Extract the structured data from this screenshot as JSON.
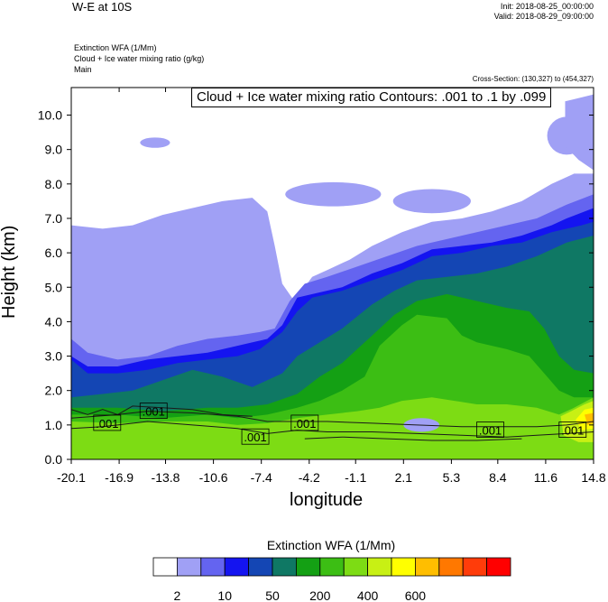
{
  "header": {
    "title": "W-E at 10S",
    "init": "Init: 2018-08-25_00:00:00",
    "valid": "Valid: 2018-08-29_09:00:00"
  },
  "fields": {
    "line1": "Extinction WFA   (1/Mm)",
    "line2": "Cloud + Ice water mixing ratio   (g/kg)",
    "line3": "Main"
  },
  "cross_section": "Cross-Section: (130,327) to (454,327)",
  "contour_info": "Cloud + Ice water mixing ratio Contours: .001 to .1 by .099",
  "colorbar": {
    "title": "Extinction WFA  (1/Mm)",
    "colors": [
      "#ffffff",
      "#a0a0f5",
      "#6464f0",
      "#1414f0",
      "#1446b4",
      "#0f7864",
      "#14a014",
      "#3cbe14",
      "#7ddc14",
      "#c8f014",
      "#ffff00",
      "#ffbe00",
      "#ff7800",
      "#ff3c0a",
      "#ff0000"
    ],
    "tick_labels": [
      "2",
      "10",
      "50",
      "200",
      "400",
      "600"
    ]
  },
  "chart_data": {
    "type": "heatmap",
    "title": "Cloud + Ice water mixing ratio Contours: .001 to .1 by .099",
    "xlabel": "longitude",
    "ylabel": "Height (km)",
    "xlim": [
      -20.1,
      14.8
    ],
    "ylim": [
      0.0,
      10.8
    ],
    "x_ticks": [
      "-20.1",
      "-16.9",
      "-13.8",
      "-10.6",
      "-7.4",
      "-4.2",
      "-1.1",
      "2.1",
      "5.3",
      "8.4",
      "11.6",
      "14.8"
    ],
    "y_ticks": [
      "0.0",
      "1.0",
      "2.0",
      "3.0",
      "4.0",
      "5.0",
      "6.0",
      "7.0",
      "8.0",
      "9.0",
      "10.0"
    ],
    "contour_labels": [
      {
        "text": ".001",
        "x": -17.7,
        "y": 1.05
      },
      {
        "text": ".001",
        "x": -14.6,
        "y": 1.4
      },
      {
        "text": ".001",
        "x": -7.8,
        "y": 0.65
      },
      {
        "text": ".001",
        "x": -4.5,
        "y": 1.05
      },
      {
        "text": ".001",
        "x": 7.9,
        "y": 0.85
      },
      {
        "text": ".001",
        "x": 13.4,
        "y": 0.85
      }
    ],
    "layers": [
      {
        "level": 1,
        "top": [
          [
            -20.1,
            6.8
          ],
          [
            -18,
            6.7
          ],
          [
            -16,
            6.8
          ],
          [
            -14,
            7.1
          ],
          [
            -12,
            7.3
          ],
          [
            -10,
            7.5
          ],
          [
            -8,
            7.6
          ],
          [
            -7,
            7.2
          ],
          [
            -6.5,
            6.2
          ],
          [
            -6,
            5.1
          ],
          [
            -5.2,
            4.6
          ],
          [
            -4,
            5.3
          ],
          [
            -3,
            5.5
          ],
          [
            -1.5,
            5.8
          ],
          [
            0,
            6.2
          ],
          [
            2,
            6.6
          ],
          [
            4,
            6.9
          ],
          [
            6,
            7.0
          ],
          [
            8,
            7.2
          ],
          [
            10,
            7.5
          ],
          [
            12,
            8.0
          ],
          [
            13.5,
            8.3
          ],
          [
            14.8,
            8.3
          ]
        ]
      },
      {
        "level": 2,
        "top": [
          [
            -20.1,
            3.5
          ],
          [
            -19,
            3.1
          ],
          [
            -17,
            2.9
          ],
          [
            -15,
            3.0
          ],
          [
            -13,
            3.3
          ],
          [
            -11,
            3.5
          ],
          [
            -9,
            3.6
          ],
          [
            -7.5,
            3.7
          ],
          [
            -6.5,
            3.8
          ],
          [
            -5.5,
            4.6
          ],
          [
            -4.5,
            5.1
          ],
          [
            -3,
            5.3
          ],
          [
            -1,
            5.6
          ],
          [
            1,
            5.9
          ],
          [
            3,
            6.2
          ],
          [
            5,
            6.4
          ],
          [
            7,
            6.6
          ],
          [
            9,
            6.8
          ],
          [
            11,
            7.0
          ],
          [
            13,
            7.4
          ],
          [
            14.8,
            7.7
          ]
        ]
      },
      {
        "level": 3,
        "top": [
          [
            -20.1,
            3.0
          ],
          [
            -19,
            2.7
          ],
          [
            -17,
            2.7
          ],
          [
            -15,
            2.9
          ],
          [
            -13,
            3.0
          ],
          [
            -11,
            3.1
          ],
          [
            -9,
            3.3
          ],
          [
            -7,
            3.5
          ],
          [
            -6,
            3.9
          ],
          [
            -5,
            4.7
          ],
          [
            -4,
            4.8
          ],
          [
            -2,
            5.0
          ],
          [
            0,
            5.4
          ],
          [
            2,
            5.7
          ],
          [
            4,
            6.1
          ],
          [
            6,
            6.2
          ],
          [
            8,
            6.3
          ],
          [
            10,
            6.5
          ],
          [
            12,
            6.8
          ],
          [
            13,
            7.0
          ],
          [
            14.8,
            7.3
          ]
        ]
      },
      {
        "level": 4,
        "top": [
          [
            -20.1,
            2.9
          ],
          [
            -19,
            2.5
          ],
          [
            -17,
            2.5
          ],
          [
            -15,
            2.6
          ],
          [
            -13,
            2.8
          ],
          [
            -11,
            2.9
          ],
          [
            -9,
            3.0
          ],
          [
            -7.5,
            3.2
          ],
          [
            -6,
            3.7
          ],
          [
            -5,
            4.3
          ],
          [
            -4,
            4.7
          ],
          [
            -2,
            4.9
          ],
          [
            0,
            5.2
          ],
          [
            2,
            5.5
          ],
          [
            4,
            5.9
          ],
          [
            6,
            6.0
          ],
          [
            8,
            6.2
          ],
          [
            10,
            6.3
          ],
          [
            12,
            6.6
          ],
          [
            14,
            6.8
          ],
          [
            14.8,
            6.9
          ]
        ]
      },
      {
        "level": 5,
        "top": [
          [
            -20.1,
            1.8
          ],
          [
            -18,
            1.9
          ],
          [
            -16,
            2.0
          ],
          [
            -14,
            2.3
          ],
          [
            -12,
            2.6
          ],
          [
            -10,
            2.4
          ],
          [
            -8,
            2.1
          ],
          [
            -6,
            2.5
          ],
          [
            -5,
            3.0
          ],
          [
            -3.5,
            3.4
          ],
          [
            -2,
            3.8
          ],
          [
            0,
            4.5
          ],
          [
            1.5,
            4.9
          ],
          [
            3,
            5.2
          ],
          [
            5,
            5.3
          ],
          [
            7,
            5.4
          ],
          [
            9,
            5.6
          ],
          [
            11,
            5.9
          ],
          [
            13,
            6.3
          ],
          [
            14.8,
            6.5
          ]
        ]
      },
      {
        "level": 6,
        "top": [
          [
            -20.1,
            1.5
          ],
          [
            -17,
            1.5
          ],
          [
            -14,
            1.4
          ],
          [
            -11,
            1.5
          ],
          [
            -9,
            1.5
          ],
          [
            -7,
            1.6
          ],
          [
            -5,
            1.9
          ],
          [
            -3.5,
            2.4
          ],
          [
            -2,
            2.8
          ],
          [
            -1,
            3.2
          ],
          [
            0,
            3.6
          ],
          [
            1.5,
            4.2
          ],
          [
            3,
            4.6
          ],
          [
            5,
            4.8
          ],
          [
            7,
            4.6
          ],
          [
            9,
            4.4
          ],
          [
            10.5,
            4.3
          ],
          [
            11.5,
            3.8
          ],
          [
            12.5,
            3.0
          ],
          [
            13.5,
            2.6
          ],
          [
            14.8,
            2.5
          ]
        ]
      },
      {
        "level": 7,
        "top": [
          [
            -20.1,
            1.3
          ],
          [
            -17,
            1.3
          ],
          [
            -14,
            1.2
          ],
          [
            -11,
            1.3
          ],
          [
            -9,
            1.2
          ],
          [
            -7,
            1.3
          ],
          [
            -5,
            1.5
          ],
          [
            -3.5,
            1.7
          ],
          [
            -2,
            2.0
          ],
          [
            -0.5,
            2.4
          ],
          [
            0.5,
            3.3
          ],
          [
            2,
            3.9
          ],
          [
            3,
            4.2
          ],
          [
            5,
            4.1
          ],
          [
            6,
            3.6
          ],
          [
            7,
            3.4
          ],
          [
            9,
            3.2
          ],
          [
            10.5,
            3.0
          ],
          [
            11.5,
            2.5
          ],
          [
            12.5,
            2.0
          ],
          [
            13.5,
            1.8
          ],
          [
            14.8,
            1.8
          ]
        ]
      },
      {
        "level": 8,
        "top": [
          [
            -20.1,
            1.1
          ],
          [
            -17,
            1.05
          ],
          [
            -14,
            1.1
          ],
          [
            -11,
            1.1
          ],
          [
            -9,
            1.0
          ],
          [
            -7,
            1.05
          ],
          [
            -5,
            1.2
          ],
          [
            -3,
            1.3
          ],
          [
            -1,
            1.4
          ],
          [
            0.5,
            1.5
          ],
          [
            2,
            1.7
          ],
          [
            4,
            1.8
          ],
          [
            5.5,
            1.7
          ],
          [
            7,
            1.6
          ],
          [
            9,
            1.6
          ],
          [
            11,
            1.5
          ],
          [
            12.5,
            1.3
          ],
          [
            13.5,
            1.5
          ],
          [
            14.8,
            1.8
          ]
        ]
      }
    ]
  }
}
